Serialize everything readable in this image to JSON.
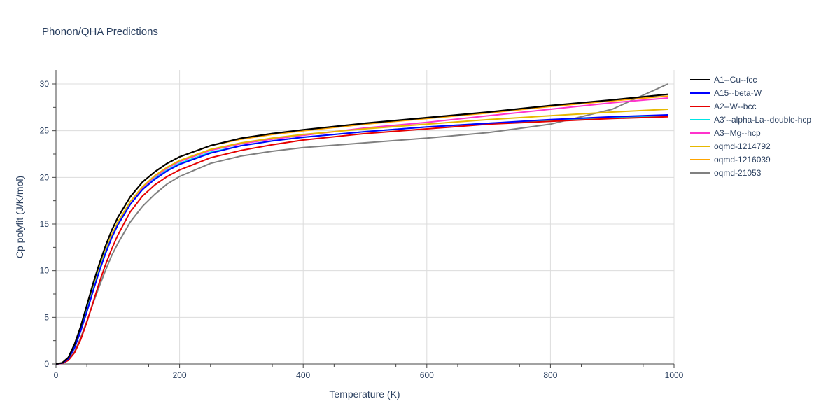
{
  "chart_data": {
    "type": "line",
    "title": "Phonon/QHA Predictions",
    "xlabel": "Temperature (K)",
    "ylabel": "Cp polyfit (J/K/mol)",
    "xlim": [
      0,
      1000
    ],
    "ylim": [
      0,
      31.5
    ],
    "xticks": [
      0,
      200,
      400,
      600,
      800,
      1000
    ],
    "yticks": [
      0,
      5,
      10,
      15,
      20,
      25,
      30
    ],
    "grid": true,
    "legend_position": "right",
    "x": [
      0,
      10,
      20,
      30,
      40,
      50,
      60,
      70,
      80,
      90,
      100,
      120,
      140,
      160,
      180,
      200,
      250,
      300,
      350,
      400,
      500,
      600,
      700,
      800,
      900,
      990
    ],
    "series": [
      {
        "name": "oqmd-21053",
        "color": "#808080",
        "values": [
          0,
          0.05,
          0.4,
          1.3,
          2.8,
          4.6,
          6.5,
          8.3,
          10.0,
          11.6,
          12.9,
          15.2,
          16.9,
          18.2,
          19.3,
          20.1,
          21.5,
          22.3,
          22.8,
          23.2,
          23.7,
          24.2,
          24.8,
          25.7,
          27.3,
          30.0
        ]
      },
      {
        "name": "A3--Mg--hcp",
        "color": "#ff33cc",
        "values": [
          0,
          0.1,
          0.6,
          1.8,
          3.6,
          5.7,
          7.9,
          10.0,
          11.9,
          13.5,
          14.9,
          17.1,
          18.8,
          20.0,
          21.0,
          21.7,
          22.9,
          23.6,
          24.1,
          24.5,
          25.3,
          25.9,
          26.6,
          27.3,
          28.0,
          28.5
        ]
      },
      {
        "name": "oqmd-1214792",
        "color": "#e6b800",
        "values": [
          0,
          0.1,
          0.6,
          1.9,
          3.7,
          5.9,
          8.1,
          10.2,
          12.1,
          13.8,
          15.2,
          17.4,
          19.0,
          20.2,
          21.1,
          21.8,
          23.0,
          23.7,
          24.2,
          24.6,
          25.2,
          25.7,
          26.2,
          26.6,
          27.0,
          27.3
        ]
      },
      {
        "name": "oqmd-1216039",
        "color": "#ffa500",
        "values": [
          0,
          0.12,
          0.7,
          2.1,
          4.0,
          6.3,
          8.6,
          10.7,
          12.6,
          14.3,
          15.7,
          17.9,
          19.5,
          20.6,
          21.5,
          22.2,
          23.4,
          24.1,
          24.6,
          25.0,
          25.7,
          26.3,
          26.9,
          27.6,
          28.2,
          28.7
        ]
      },
      {
        "name": "A3'--alpha-La--double-hcp",
        "color": "#00e5e5",
        "values": [
          0,
          0.1,
          0.6,
          1.8,
          3.6,
          5.7,
          7.9,
          10.0,
          11.9,
          13.5,
          14.9,
          17.1,
          18.7,
          19.9,
          20.8,
          21.5,
          22.7,
          23.4,
          23.9,
          24.3,
          24.9,
          25.4,
          25.8,
          26.1,
          26.4,
          26.6
        ]
      },
      {
        "name": "A2--W--bcc",
        "color": "#e60000",
        "values": [
          0,
          0.05,
          0.4,
          1.2,
          2.6,
          4.5,
          6.6,
          8.7,
          10.6,
          12.3,
          13.8,
          16.3,
          18.0,
          19.2,
          20.1,
          20.8,
          22.1,
          22.9,
          23.5,
          24.0,
          24.7,
          25.2,
          25.7,
          26.0,
          26.3,
          26.5
        ]
      },
      {
        "name": "A15--beta-W",
        "color": "#0000ff",
        "values": [
          0,
          0.08,
          0.55,
          1.7,
          3.5,
          5.6,
          7.8,
          9.9,
          11.8,
          13.5,
          14.9,
          17.1,
          18.7,
          19.8,
          20.7,
          21.4,
          22.6,
          23.4,
          23.9,
          24.3,
          24.9,
          25.4,
          25.8,
          26.2,
          26.5,
          26.7
        ]
      },
      {
        "name": "A1--Cu--fcc",
        "color": "#000000",
        "values": [
          0,
          0.12,
          0.7,
          2.1,
          4.0,
          6.3,
          8.6,
          10.7,
          12.6,
          14.3,
          15.7,
          17.9,
          19.5,
          20.6,
          21.5,
          22.2,
          23.4,
          24.2,
          24.7,
          25.1,
          25.8,
          26.4,
          27.0,
          27.7,
          28.3,
          28.9
        ]
      }
    ],
    "legend_order": [
      "A1--Cu--fcc",
      "A15--beta-W",
      "A2--W--bcc",
      "A3'--alpha-La--double-hcp",
      "A3--Mg--hcp",
      "oqmd-1214792",
      "oqmd-1216039",
      "oqmd-21053"
    ]
  }
}
